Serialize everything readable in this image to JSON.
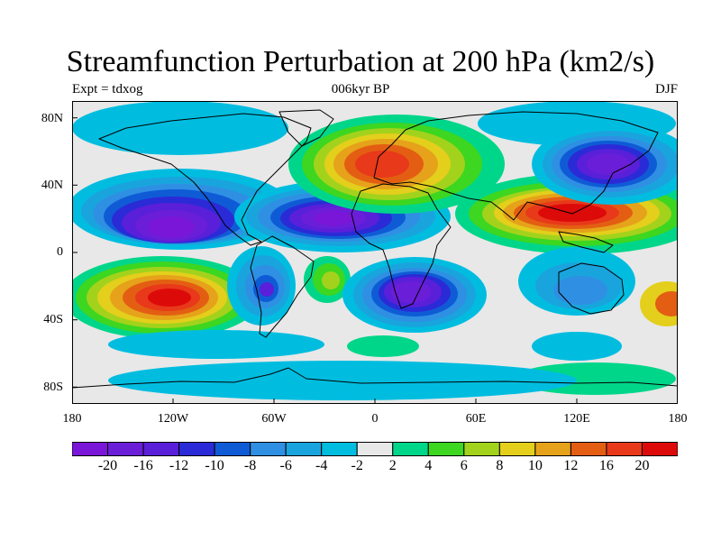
{
  "title": "Streamfunction Perturbation at 200 hPa (km2/s)",
  "experiment": "Expt = tdxog",
  "period": "006kyr BP",
  "season": "DJF",
  "axes": {
    "lat_labels": [
      "80N",
      "40N",
      "0",
      "40S",
      "80S"
    ],
    "lon_labels": [
      "180",
      "120W",
      "60W",
      "0",
      "60E",
      "120E",
      "180"
    ]
  },
  "colorbar": {
    "colors": [
      "#7a16d8",
      "#6b1ed8",
      "#5a1fd9",
      "#2a2bd6",
      "#0f5bd6",
      "#2f8fe3",
      "#1aa4dd",
      "#00bde0",
      "#e8e8e8",
      "#00d68a",
      "#3dd620",
      "#a3d21c",
      "#e3cf1c",
      "#e6a21a",
      "#e35e12",
      "#e8391a",
      "#dd0a0a"
    ],
    "labels": [
      "-20",
      "-16",
      "-12",
      "-10",
      "-8",
      "-6",
      "-4",
      "-2",
      "2",
      "4",
      "6",
      "8",
      "10",
      "12",
      "16",
      "20"
    ]
  },
  "chart_data": {
    "type": "filled-contour-map",
    "variable": "Streamfunction perturbation at 200 hPa",
    "units": "km2/s",
    "contour_levels": [
      -20,
      -16,
      -12,
      -10,
      -8,
      -6,
      -4,
      -2,
      2,
      4,
      6,
      8,
      10,
      12,
      16,
      20
    ],
    "lon_range": [
      -180,
      180
    ],
    "lat_range": [
      -90,
      90
    ],
    "features": [
      {
        "name": "east-pacific-low",
        "lon": -125,
        "lat": 18,
        "value": -22,
        "wlon": 40,
        "wlat": 14
      },
      {
        "name": "atlantic-africa-low",
        "lon": -20,
        "lat": 20,
        "value": -21,
        "wlon": 42,
        "wlat": 12
      },
      {
        "name": "south-africa-low",
        "lon": 25,
        "lat": -25,
        "value": -20,
        "wlon": 30,
        "wlat": 14
      },
      {
        "name": "south-america-low",
        "lon": -65,
        "lat": -20,
        "value": -16,
        "wlon": 14,
        "wlat": 14
      },
      {
        "name": "north-pacific-low",
        "lon": 140,
        "lat": 50,
        "value": -17,
        "wlon": 32,
        "wlat": 12
      },
      {
        "name": "south-pacific-high",
        "lon": -135,
        "lat": -22,
        "value": 22,
        "wlon": 32,
        "wlat": 14
      },
      {
        "name": "europe-high",
        "lon": 5,
        "lat": 52,
        "value": 17,
        "wlon": 32,
        "wlat": 13
      },
      {
        "name": "asia-high",
        "lon": 115,
        "lat": 22,
        "value": 20,
        "wlon": 40,
        "wlat": 10
      },
      {
        "name": "australia-low",
        "lon": 125,
        "lat": -25,
        "value": -8,
        "wlon": 20,
        "wlat": 14
      }
    ]
  }
}
